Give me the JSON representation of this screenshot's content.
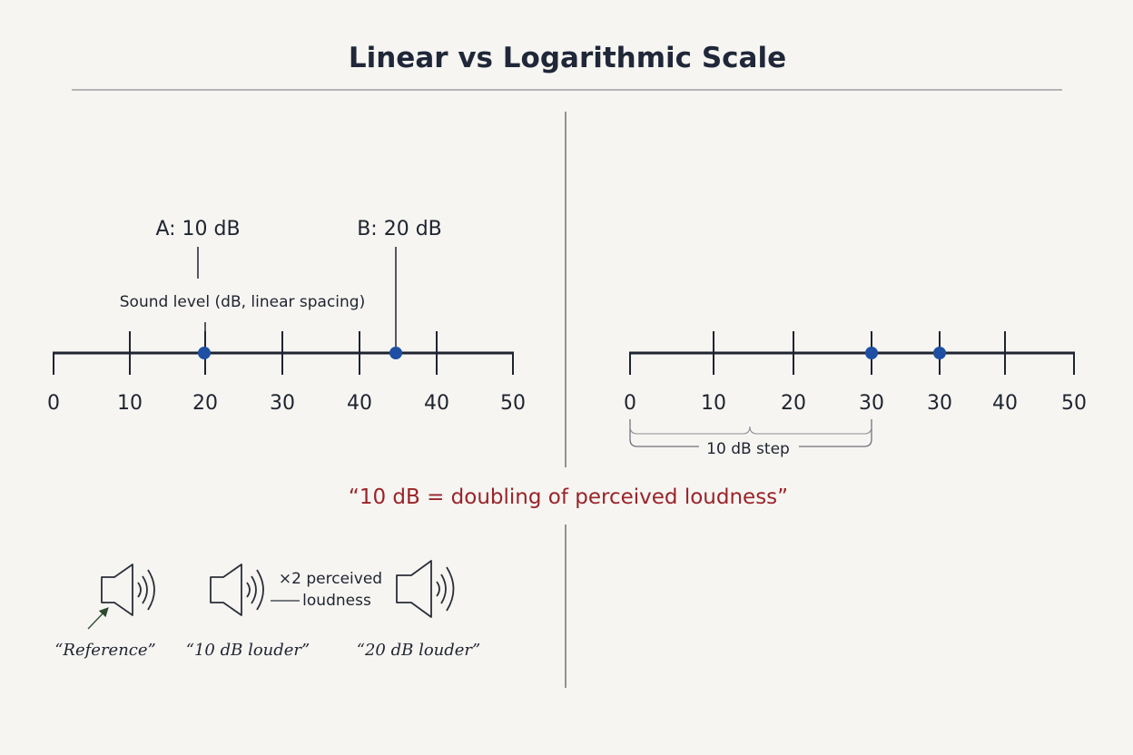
{
  "title": "Linear vs Logarithmic Scale",
  "quote": "“10 dB = doubling of perceived loudness”",
  "colors": {
    "accent_dot": "#1f4fa3",
    "quote": "#9a2328",
    "ink": "#1f2430",
    "arrow": "#2d4a2d"
  },
  "left_axis": {
    "title": "Sound level (dB, linear spacing)",
    "tick_labels": [
      "0",
      "10",
      "20",
      "30",
      "40",
      "40",
      "50"
    ],
    "markers": [
      {
        "label": "A: 10 dB",
        "tick_index": 2
      },
      {
        "label": "B: 20 dB",
        "tick_index": 4.45
      }
    ]
  },
  "right_axis": {
    "tick_labels": [
      "0",
      "10",
      "20",
      "30",
      "30",
      "40",
      "50"
    ],
    "dot_tick_indices": [
      3,
      4
    ],
    "step_label": "10 dB step"
  },
  "speakers": {
    "items": [
      {
        "caption": "“Reference”",
        "icon": "speaker-icon"
      },
      {
        "caption": "“10 dB louder”",
        "icon": "speaker-icon"
      },
      {
        "caption": "“20 dB louder”",
        "icon": "speaker-icon"
      }
    ],
    "connector_label_line1": "×2 perceived",
    "connector_label_line2": "loudness"
  }
}
